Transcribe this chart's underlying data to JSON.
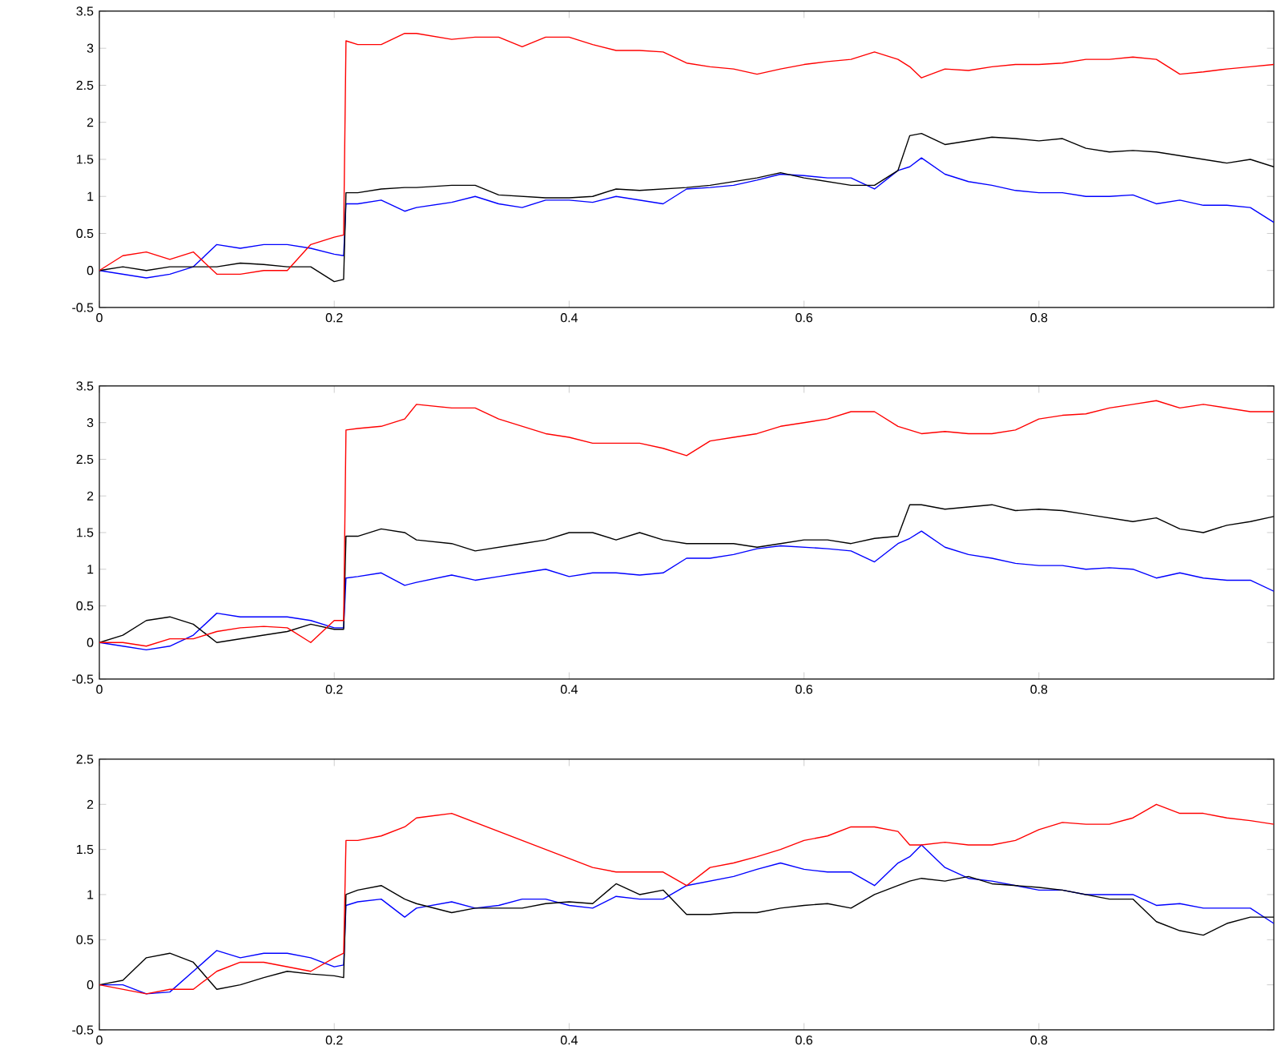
{
  "chart_data": [
    {
      "type": "line",
      "x": [
        0,
        0.02,
        0.04,
        0.06,
        0.08,
        0.1,
        0.12,
        0.14,
        0.16,
        0.18,
        0.2,
        0.208,
        0.21,
        0.22,
        0.24,
        0.26,
        0.27,
        0.3,
        0.32,
        0.34,
        0.36,
        0.38,
        0.4,
        0.42,
        0.44,
        0.46,
        0.48,
        0.5,
        0.52,
        0.54,
        0.56,
        0.58,
        0.6,
        0.62,
        0.64,
        0.66,
        0.68,
        0.69,
        0.7,
        0.72,
        0.74,
        0.76,
        0.78,
        0.8,
        0.82,
        0.84,
        0.86,
        0.88,
        0.9,
        0.92,
        0.94,
        0.96,
        0.98,
        1.0
      ],
      "xlim": [
        0,
        1
      ],
      "xticks": [
        0,
        0.2,
        0.4,
        0.6,
        0.8
      ],
      "ylim": [
        -0.5,
        3.5
      ],
      "yticks": [
        -0.5,
        0,
        0.5,
        1,
        1.5,
        2,
        2.5,
        3,
        3.5
      ],
      "series": [
        {
          "color": "#0000ff",
          "values": [
            0,
            -0.05,
            -0.1,
            -0.05,
            0.05,
            0.35,
            0.3,
            0.35,
            0.35,
            0.3,
            0.22,
            0.2,
            0.9,
            0.9,
            0.95,
            0.8,
            0.85,
            0.92,
            1.0,
            0.9,
            0.85,
            0.95,
            0.95,
            0.92,
            1.0,
            0.95,
            0.9,
            1.1,
            1.12,
            1.15,
            1.22,
            1.3,
            1.28,
            1.25,
            1.25,
            1.1,
            1.35,
            1.4,
            1.52,
            1.3,
            1.2,
            1.15,
            1.08,
            1.05,
            1.05,
            1.0,
            1.0,
            1.02,
            0.9,
            0.95,
            0.88,
            0.88,
            0.85,
            0.65
          ]
        },
        {
          "color": "#000000",
          "values": [
            0,
            0.05,
            0,
            0.05,
            0.05,
            0.05,
            0.1,
            0.08,
            0.05,
            0.05,
            -0.15,
            -0.12,
            1.05,
            1.05,
            1.1,
            1.12,
            1.12,
            1.15,
            1.15,
            1.02,
            1.0,
            0.98,
            0.98,
            1.0,
            1.1,
            1.08,
            1.1,
            1.12,
            1.15,
            1.2,
            1.25,
            1.32,
            1.25,
            1.2,
            1.15,
            1.15,
            1.35,
            1.82,
            1.85,
            1.7,
            1.75,
            1.8,
            1.78,
            1.75,
            1.78,
            1.65,
            1.6,
            1.62,
            1.6,
            1.55,
            1.5,
            1.45,
            1.5,
            1.4
          ]
        },
        {
          "color": "#ff0000",
          "values": [
            0,
            0.2,
            0.25,
            0.15,
            0.25,
            -0.05,
            -0.05,
            0,
            0,
            0.35,
            0.45,
            0.48,
            3.1,
            3.05,
            3.05,
            3.2,
            3.2,
            3.12,
            3.15,
            3.15,
            3.02,
            3.15,
            3.15,
            3.05,
            2.97,
            2.97,
            2.95,
            2.8,
            2.75,
            2.72,
            2.65,
            2.72,
            2.78,
            2.82,
            2.85,
            2.95,
            2.85,
            2.75,
            2.6,
            2.72,
            2.7,
            2.75,
            2.78,
            2.78,
            2.8,
            2.85,
            2.85,
            2.88,
            2.85,
            2.65,
            2.68,
            2.72,
            2.75,
            2.78
          ]
        }
      ]
    },
    {
      "type": "line",
      "x": [
        0,
        0.02,
        0.04,
        0.06,
        0.08,
        0.1,
        0.12,
        0.14,
        0.16,
        0.18,
        0.2,
        0.208,
        0.21,
        0.22,
        0.24,
        0.26,
        0.27,
        0.3,
        0.32,
        0.34,
        0.36,
        0.38,
        0.4,
        0.42,
        0.44,
        0.46,
        0.48,
        0.5,
        0.52,
        0.54,
        0.56,
        0.58,
        0.6,
        0.62,
        0.64,
        0.66,
        0.68,
        0.69,
        0.7,
        0.72,
        0.74,
        0.76,
        0.78,
        0.8,
        0.82,
        0.84,
        0.86,
        0.88,
        0.9,
        0.92,
        0.94,
        0.96,
        0.98,
        1.0
      ],
      "xlim": [
        0,
        1
      ],
      "xticks": [
        0,
        0.2,
        0.4,
        0.6,
        0.8
      ],
      "ylim": [
        -0.5,
        3.5
      ],
      "yticks": [
        -0.5,
        0,
        0.5,
        1,
        1.5,
        2,
        2.5,
        3,
        3.5
      ],
      "series": [
        {
          "color": "#0000ff",
          "values": [
            0,
            -0.05,
            -0.1,
            -0.05,
            0.1,
            0.4,
            0.35,
            0.35,
            0.35,
            0.3,
            0.2,
            0.2,
            0.88,
            0.9,
            0.95,
            0.78,
            0.82,
            0.92,
            0.85,
            0.9,
            0.95,
            1.0,
            0.9,
            0.95,
            0.95,
            0.92,
            0.95,
            1.15,
            1.15,
            1.2,
            1.28,
            1.32,
            1.3,
            1.28,
            1.25,
            1.1,
            1.35,
            1.42,
            1.52,
            1.3,
            1.2,
            1.15,
            1.08,
            1.05,
            1.05,
            1.0,
            1.02,
            1.0,
            0.88,
            0.95,
            0.88,
            0.85,
            0.85,
            0.7
          ]
        },
        {
          "color": "#000000",
          "values": [
            0,
            0.1,
            0.3,
            0.35,
            0.25,
            0.0,
            0.05,
            0.1,
            0.15,
            0.25,
            0.18,
            0.18,
            1.45,
            1.45,
            1.55,
            1.5,
            1.4,
            1.35,
            1.25,
            1.3,
            1.35,
            1.4,
            1.5,
            1.5,
            1.4,
            1.5,
            1.4,
            1.35,
            1.35,
            1.35,
            1.3,
            1.35,
            1.4,
            1.4,
            1.35,
            1.42,
            1.45,
            1.88,
            1.88,
            1.82,
            1.85,
            1.88,
            1.8,
            1.82,
            1.8,
            1.75,
            1.7,
            1.65,
            1.7,
            1.55,
            1.5,
            1.6,
            1.65,
            1.72
          ]
        },
        {
          "color": "#ff0000",
          "values": [
            0,
            0,
            -0.05,
            0.05,
            0.05,
            0.15,
            0.2,
            0.22,
            0.2,
            0.0,
            0.3,
            0.3,
            2.9,
            2.92,
            2.95,
            3.05,
            3.25,
            3.2,
            3.2,
            3.05,
            2.95,
            2.85,
            2.8,
            2.72,
            2.72,
            2.72,
            2.65,
            2.55,
            2.75,
            2.8,
            2.85,
            2.95,
            3.0,
            3.05,
            3.15,
            3.15,
            2.95,
            2.9,
            2.85,
            2.88,
            2.85,
            2.85,
            2.9,
            3.05,
            3.1,
            3.12,
            3.2,
            3.25,
            3.3,
            3.2,
            3.25,
            3.2,
            3.15,
            3.15
          ]
        }
      ]
    },
    {
      "type": "line",
      "x": [
        0,
        0.02,
        0.04,
        0.06,
        0.08,
        0.1,
        0.12,
        0.14,
        0.16,
        0.18,
        0.2,
        0.208,
        0.21,
        0.22,
        0.24,
        0.26,
        0.27,
        0.3,
        0.32,
        0.34,
        0.36,
        0.38,
        0.4,
        0.42,
        0.44,
        0.46,
        0.48,
        0.5,
        0.52,
        0.54,
        0.56,
        0.58,
        0.6,
        0.62,
        0.64,
        0.66,
        0.68,
        0.69,
        0.7,
        0.72,
        0.74,
        0.76,
        0.78,
        0.8,
        0.82,
        0.84,
        0.86,
        0.88,
        0.9,
        0.92,
        0.94,
        0.96,
        0.98,
        1.0
      ],
      "xlim": [
        0,
        1
      ],
      "xticks": [
        0,
        0.2,
        0.4,
        0.6,
        0.8
      ],
      "ylim": [
        -0.5,
        2.5
      ],
      "yticks": [
        -0.5,
        0,
        0.5,
        1,
        1.5,
        2,
        2.5
      ],
      "series": [
        {
          "color": "#0000ff",
          "values": [
            0,
            0,
            -0.1,
            -0.08,
            0.15,
            0.38,
            0.3,
            0.35,
            0.35,
            0.3,
            0.2,
            0.22,
            0.88,
            0.92,
            0.95,
            0.75,
            0.85,
            0.92,
            0.85,
            0.88,
            0.95,
            0.95,
            0.88,
            0.85,
            0.98,
            0.95,
            0.95,
            1.1,
            1.15,
            1.2,
            1.28,
            1.35,
            1.28,
            1.25,
            1.25,
            1.1,
            1.35,
            1.42,
            1.55,
            1.3,
            1.18,
            1.15,
            1.1,
            1.05,
            1.05,
            1.0,
            1.0,
            1.0,
            0.88,
            0.9,
            0.85,
            0.85,
            0.85,
            0.68
          ]
        },
        {
          "color": "#000000",
          "values": [
            0,
            0.05,
            0.3,
            0.35,
            0.25,
            -0.05,
            0.0,
            0.08,
            0.15,
            0.12,
            0.1,
            0.08,
            1.0,
            1.05,
            1.1,
            0.95,
            0.9,
            0.8,
            0.85,
            0.85,
            0.85,
            0.9,
            0.92,
            0.9,
            1.12,
            1.0,
            1.05,
            0.78,
            0.78,
            0.8,
            0.8,
            0.85,
            0.88,
            0.9,
            0.85,
            1.0,
            1.1,
            1.15,
            1.18,
            1.15,
            1.2,
            1.12,
            1.1,
            1.08,
            1.05,
            1.0,
            0.95,
            0.95,
            0.7,
            0.6,
            0.55,
            0.68,
            0.75,
            0.75
          ]
        },
        {
          "color": "#ff0000",
          "values": [
            0,
            -0.05,
            -0.1,
            -0.05,
            -0.05,
            0.15,
            0.25,
            0.25,
            0.2,
            0.15,
            0.3,
            0.35,
            1.6,
            1.6,
            1.65,
            1.75,
            1.85,
            1.9,
            1.8,
            1.7,
            1.6,
            1.5,
            1.4,
            1.3,
            1.25,
            1.25,
            1.25,
            1.1,
            1.3,
            1.35,
            1.42,
            1.5,
            1.6,
            1.65,
            1.75,
            1.75,
            1.7,
            1.55,
            1.55,
            1.58,
            1.55,
            1.55,
            1.6,
            1.72,
            1.8,
            1.78,
            1.78,
            1.85,
            2.0,
            1.9,
            1.9,
            1.85,
            1.82,
            1.78
          ]
        }
      ]
    }
  ]
}
